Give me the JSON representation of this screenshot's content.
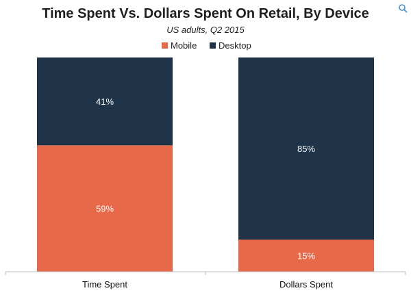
{
  "chart_data": {
    "type": "bar",
    "stacked": true,
    "percent_stacked": true,
    "title": "Time Spent Vs. Dollars Spent On Retail, By Device",
    "subtitle": "US adults, Q2 2015",
    "categories": [
      "Time Spent",
      "Dollars Spent"
    ],
    "series": [
      {
        "name": "Mobile",
        "color": "#e8694a",
        "values": [
          59,
          15
        ],
        "labels": [
          "59%",
          "15%"
        ]
      },
      {
        "name": "Desktop",
        "color": "#1f3349",
        "values": [
          41,
          85
        ],
        "labels": [
          "41%",
          "85%"
        ]
      }
    ],
    "ylim": [
      0,
      100
    ],
    "legend_position": "top",
    "grid": false
  },
  "icons": {
    "corner": "zoom-icon"
  }
}
